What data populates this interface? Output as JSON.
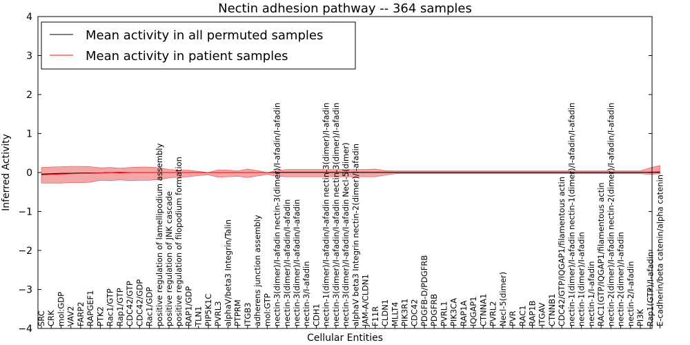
{
  "chart_data": {
    "type": "line",
    "title": "Nectin adhesion pathway -- 364 samples",
    "xlabel": "Cellular Entities",
    "ylabel": "Inferred Activity",
    "ylim": [
      -4,
      4
    ],
    "yticks": [
      "−4",
      "−3",
      "−2",
      "−1",
      "0",
      "1",
      "2",
      "3",
      "4"
    ],
    "legend": {
      "position": "top-left",
      "items": [
        {
          "label": "Mean activity in all permuted samples",
          "color": "#000000"
        },
        {
          "label": "Mean activity in patient samples",
          "color": "#ff0000"
        }
      ]
    },
    "colors": {
      "permuted": "#000000",
      "patient": "#ff0000",
      "band": "#f08080"
    },
    "categories": [
      "SRC",
      "CRK",
      "mol:GDP",
      "VAV2",
      "FARP2",
      "RAPGEF1",
      "PTK2",
      "Rac1/GTP",
      "Rap1/GTP",
      "CDC42/GTP",
      "CDC42/GDP",
      "Rac1/GDP",
      "positive regulation of lamellipodium assembly",
      "positive regulation of JNK cascade",
      "positive regulation of filopodium formation",
      "RAP1/GDP",
      "TLN1",
      "PIP5K1C",
      "PVRL3",
      "alphaV/beta3 Integrin/Talin",
      "PTPRM",
      "ITGB3",
      "adherens junction assembly",
      "mol:GTP",
      "nectin-3(dimer)/I-afadin",
      "nectin-3(dimer)/I-afadin/I-afadin",
      "nectin-3(dimer)/I-afadin/I-afadin",
      "nectin-3/I-afadin",
      "CDH1",
      "nectin-1(dimer)/I-afadin/I-afadin",
      "nectin-3(dimer)/I-afadin/I-afadin",
      "nectin-3(dimer)/I-afadin/I-afadin",
      "alphaV beta3 Integrin",
      "JAM-A/CLDN1",
      "F11R",
      "CLDN1",
      "MLLT4",
      "PIK3R1",
      "CDC42",
      "PDGFB-D/PDGFRB",
      "PDGFRB",
      "PVRL1",
      "PIK3CA",
      "RAP1A",
      "IQGAP1",
      "CTNNA1",
      "PVRL2",
      "Necl-5(dimer)",
      "PVR",
      "RAC1",
      "RAP1B",
      "ITGAV",
      "CTNNB1",
      "CDC42/GTP/IQGAP1/filamentous actin",
      "nectin-1(dimer)/I-afadin",
      "nectin-1(dimer)/I-afadin",
      "nectin-1/I-afadin",
      "RAC1(GTP/IQGAP1/filamentous actin",
      "nectin-2(dimer)/I-afadin",
      "nectin-2(dimer)/I-afadin",
      "nectin-2/I-afadin",
      "PI3K",
      "Rap1(GTP)/I-afadin",
      "E-cadherin/beta catenin/alpha catenin"
    ],
    "annotations": [
      {
        "after_index": 24,
        "text": "nectin-3(dimer)/I-afadin/I-afadin"
      },
      {
        "after_index": 29,
        "text": "nectin-3(dimer)/I-afadin"
      },
      {
        "after_index": 30,
        "text": "nectin-3(dimer)/I-afadin"
      },
      {
        "after_index": 31,
        "text": "Necl-5(dimer)"
      },
      {
        "after_index": 32,
        "text": "nectin-2(dimer)/I-afadin"
      },
      {
        "after_index": 54,
        "text": "nectin-1(dimer)/I-afadin/I-afadin"
      },
      {
        "after_index": 58,
        "text": "nectin-2(dimer)/I-afadin/I-afadin"
      }
    ],
    "series": [
      {
        "name": "Mean activity in patient samples",
        "values": [
          -0.06,
          -0.05,
          -0.04,
          -0.03,
          -0.02,
          -0.02,
          -0.01,
          0.0,
          -0.01,
          0.0,
          0.0,
          0.0,
          0.0,
          0.0,
          0.0,
          0.0,
          0.0,
          0.0,
          0.0,
          0.0,
          0.0,
          0.0,
          0.0,
          0.0,
          0.01,
          0.01,
          0.01,
          0.01,
          0.01,
          0.01,
          0.01,
          0.01,
          0.01,
          0.01,
          0.01,
          0.01,
          0.01,
          0.01,
          0.01,
          0.01,
          0.01,
          0.01,
          0.01,
          0.01,
          0.01,
          0.01,
          0.01,
          0.01,
          0.01,
          0.01,
          0.01,
          0.01,
          0.01,
          0.01,
          0.01,
          0.01,
          0.01,
          0.01,
          0.01,
          0.01,
          0.01,
          0.01,
          0.01,
          0.02
        ]
      },
      {
        "name": "Mean activity in all permuted samples",
        "values": [
          -0.04,
          -0.03,
          -0.02,
          -0.02,
          -0.01,
          -0.01,
          -0.01,
          0.0,
          0.0,
          0.0,
          0.0,
          0.0,
          0.0,
          0.0,
          0.0,
          0.0,
          0.0,
          0.0,
          0.0,
          0.0,
          0.0,
          0.0,
          0.0,
          0.0,
          0.0,
          0.0,
          0.0,
          0.0,
          0.0,
          0.0,
          0.0,
          0.0,
          0.0,
          0.0,
          0.0,
          0.0,
          0.0,
          0.0,
          0.0,
          0.0,
          0.0,
          0.0,
          0.0,
          0.0,
          0.0,
          0.0,
          0.0,
          0.0,
          0.0,
          0.0,
          0.0,
          0.0,
          0.0,
          0.0,
          0.0,
          0.0,
          0.0,
          0.0,
          0.0,
          0.0,
          0.0,
          0.0,
          0.0,
          0.0
        ]
      }
    ],
    "band_upper": [
      0.13,
      0.14,
      0.15,
      0.16,
      0.16,
      0.15,
      0.12,
      0.13,
      0.11,
      0.13,
      0.14,
      0.14,
      0.12,
      0.08,
      0.06,
      0.06,
      0.03,
      0.0,
      0.07,
      0.06,
      0.04,
      0.09,
      0.05,
      0.0,
      0.05,
      0.08,
      0.08,
      0.08,
      0.08,
      0.08,
      0.08,
      0.08,
      0.08,
      0.08,
      0.09,
      0.05,
      0.04,
      0.04,
      0.04,
      0.04,
      0.04,
      0.04,
      0.04,
      0.04,
      0.04,
      0.04,
      0.04,
      0.04,
      0.04,
      0.04,
      0.04,
      0.04,
      0.04,
      0.04,
      0.04,
      0.04,
      0.04,
      0.04,
      0.04,
      0.04,
      0.04,
      0.04,
      0.12,
      0.18
    ],
    "band_lower": [
      -0.27,
      -0.27,
      -0.27,
      -0.26,
      -0.26,
      -0.25,
      -0.2,
      -0.21,
      -0.19,
      -0.21,
      -0.2,
      -0.2,
      -0.18,
      -0.14,
      -0.12,
      -0.11,
      -0.08,
      -0.06,
      -0.12,
      -0.11,
      -0.1,
      -0.13,
      -0.09,
      -0.05,
      -0.1,
      -0.11,
      -0.11,
      -0.11,
      -0.11,
      -0.11,
      -0.11,
      -0.11,
      -0.11,
      -0.11,
      -0.11,
      -0.07,
      -0.03,
      -0.03,
      -0.03,
      -0.03,
      -0.03,
      -0.03,
      -0.03,
      -0.03,
      -0.03,
      -0.03,
      -0.03,
      -0.03,
      -0.03,
      -0.03,
      -0.03,
      -0.03,
      -0.03,
      -0.03,
      -0.03,
      -0.03,
      -0.03,
      -0.03,
      -0.03,
      -0.03,
      -0.03,
      -0.03,
      -0.05,
      -0.03
    ]
  }
}
